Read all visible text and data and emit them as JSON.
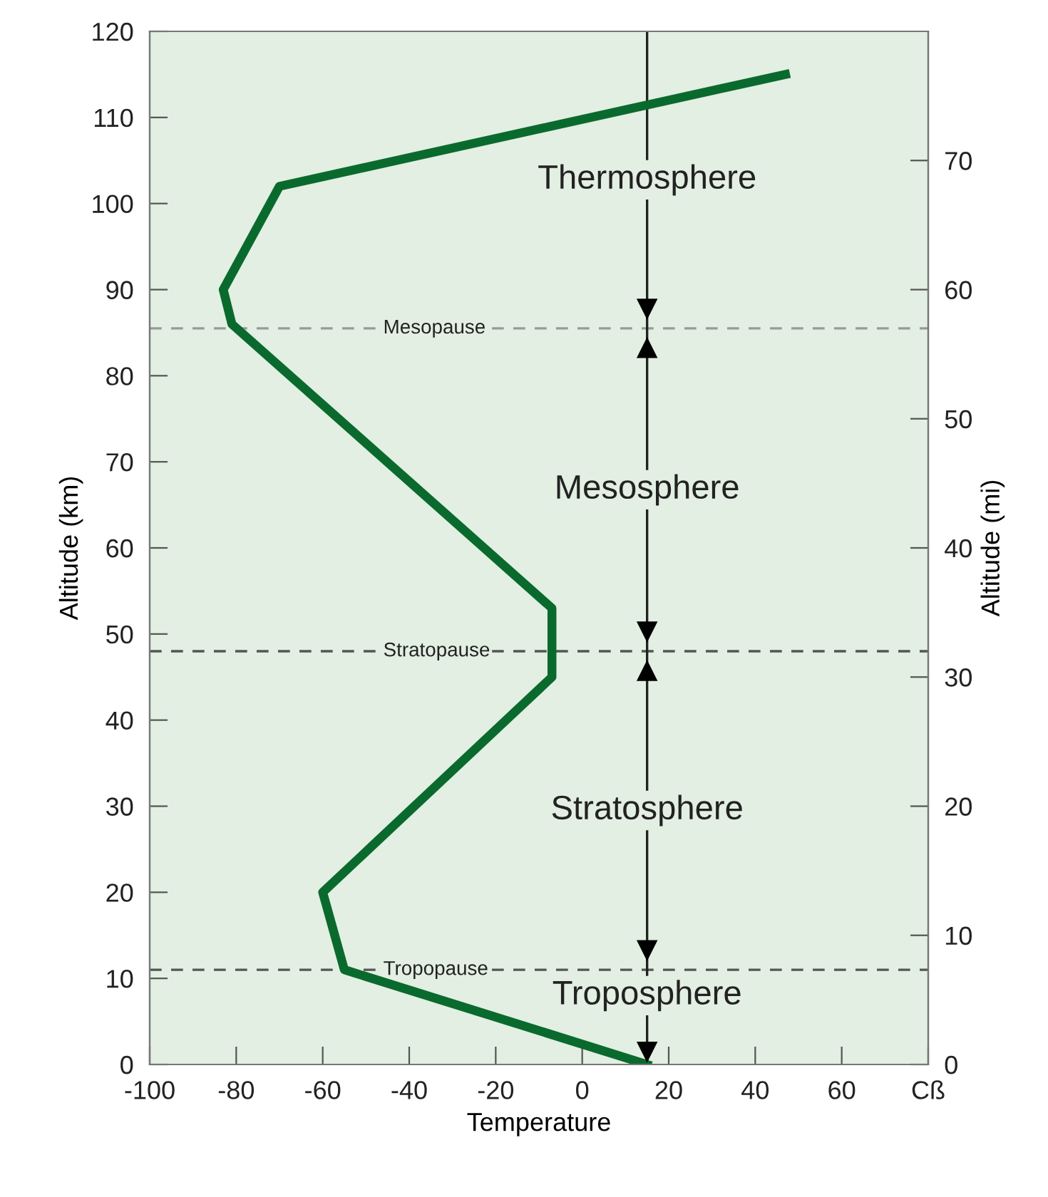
{
  "chart_data": {
    "type": "line",
    "xlabel": "Temperature",
    "ylabel": "Altitude (km)",
    "y2label": "Altitude (mi)",
    "series": [
      {
        "color": "#0a6a2e",
        "x": [
          15,
          -55,
          -60,
          -7,
          -7,
          -81,
          -83,
          -70,
          47
        ],
        "values": [
          0,
          11,
          20,
          45,
          53,
          86,
          90,
          102,
          115
        ]
      }
    ],
    "xlim": [
      -100,
      80
    ],
    "xticks": [
      -100,
      -80,
      -60,
      -40,
      -20,
      0,
      20,
      40,
      60,
      {
        "value": 80,
        "label": "Cß"
      }
    ],
    "ylim": [
      0,
      120
    ],
    "yticks": [
      0,
      10,
      20,
      30,
      40,
      50,
      60,
      70,
      80,
      90,
      100,
      110,
      120
    ],
    "y2lim": [
      0,
      80
    ],
    "y2ticks": [
      0,
      10,
      20,
      30,
      40,
      50,
      60,
      70
    ],
    "ref_lines": [
      {
        "axis": "y",
        "value": 85.5,
        "label": "Mesopause",
        "line_style": "dashed",
        "color": "#999999"
      },
      {
        "axis": "y",
        "value": 48,
        "label": "Stratopause",
        "line_style": "dashed",
        "color": "#555555"
      },
      {
        "axis": "y",
        "value": 11,
        "label": "Tropopause",
        "line_style": "dashed",
        "color": "#555555"
      },
      {
        "axis": "x",
        "value": 15,
        "line_style": "solid",
        "color": "#222222"
      }
    ],
    "annotations": [
      "Thermosphere",
      "Mesosphere",
      "Stratosphere",
      "Troposphere"
    ],
    "grid": false,
    "legend": false,
    "marker": "none",
    "line_style": "solid"
  }
}
